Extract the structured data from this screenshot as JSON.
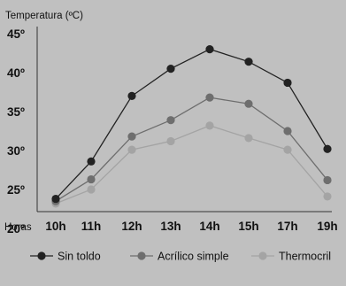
{
  "chart_data": {
    "type": "line",
    "title": "Temperatura (ºC)",
    "xlabel": "Horas",
    "ylabel": "",
    "categories": [
      "10h",
      "11h",
      "12h",
      "13h",
      "14h",
      "15h",
      "17h",
      "19h"
    ],
    "y_ticks": [
      "20º",
      "25º",
      "30º",
      "35º",
      "40º",
      "45º"
    ],
    "ylim": [
      20,
      45
    ],
    "grid": false,
    "legend_position": "bottom",
    "series": [
      {
        "name": "Sin toldo",
        "color": "#222222",
        "values": [
          23.8,
          28.6,
          37.0,
          40.5,
          43.0,
          41.4,
          38.7,
          30.2
        ]
      },
      {
        "name": "Acrílico simple",
        "color": "#6e6e6e",
        "values": [
          23.5,
          26.3,
          31.8,
          33.9,
          36.8,
          36.0,
          32.5,
          26.2
        ]
      },
      {
        "name": "Thermocril",
        "color": "#a4a4a4",
        "values": [
          23.2,
          25.0,
          30.1,
          31.2,
          33.2,
          31.6,
          30.1,
          24.1
        ]
      }
    ]
  }
}
